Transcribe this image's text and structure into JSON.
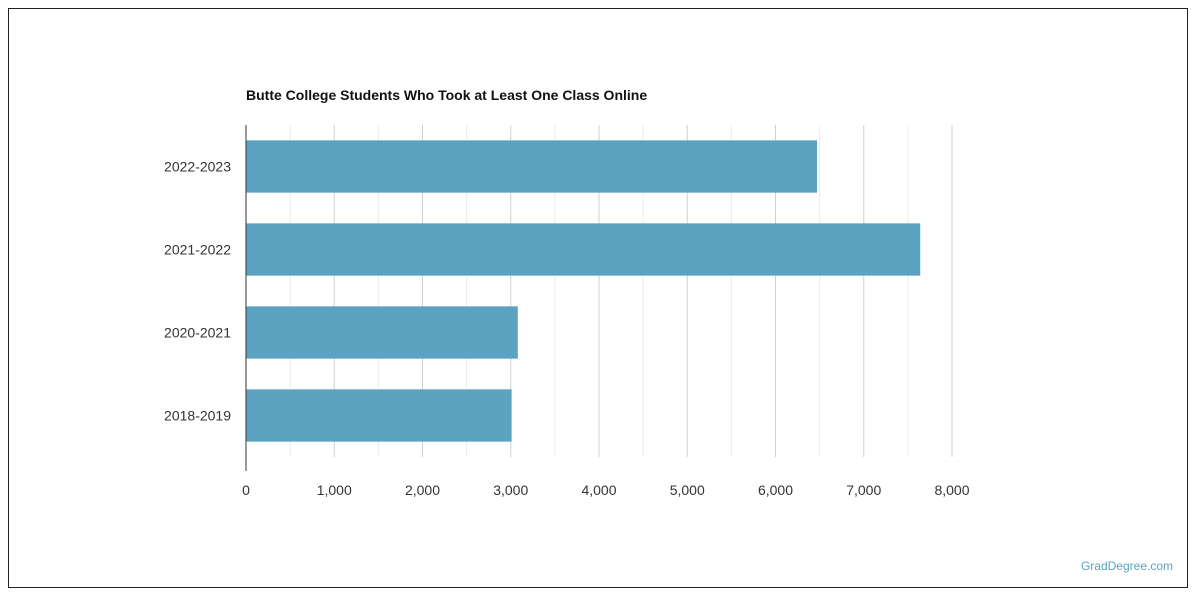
{
  "chart_data": {
    "type": "bar",
    "orientation": "horizontal",
    "title": "Butte College Students Who Took at Least One Class Online",
    "xlabel": "",
    "ylabel": "",
    "categories": [
      "2022-2023",
      "2021-2022",
      "2020-2021",
      "2018-2019"
    ],
    "values": [
      6470,
      7640,
      3080,
      3010
    ],
    "xlim": [
      0,
      8000
    ],
    "x_ticks": [
      0,
      1000,
      2000,
      3000,
      4000,
      5000,
      6000,
      7000,
      8000
    ],
    "x_tick_labels": [
      "0",
      "1,000",
      "2,000",
      "3,000",
      "4,000",
      "5,000",
      "6,000",
      "7,000",
      "8,000"
    ],
    "grid": true,
    "legend": "none",
    "bar_color": "#5ba3c0"
  },
  "watermark": "GradDegree.com"
}
